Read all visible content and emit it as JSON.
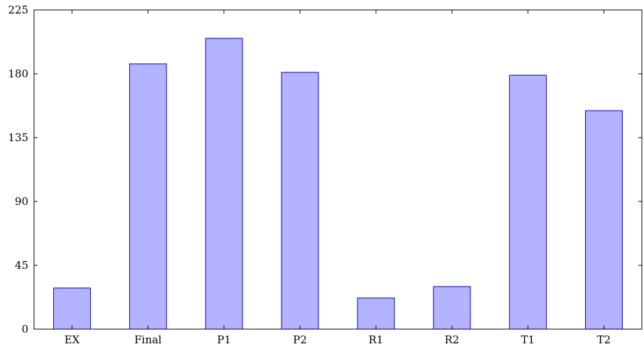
{
  "chart_data": {
    "type": "bar",
    "title": "",
    "xlabel": "",
    "ylabel": "",
    "categories": [
      "EX",
      "Final",
      "P1",
      "P2",
      "R1",
      "R2",
      "T1",
      "T2"
    ],
    "values": [
      29,
      187,
      205,
      181,
      22,
      30,
      179,
      154
    ],
    "ylim": [
      0,
      225
    ],
    "yticks": [
      0,
      45,
      90,
      135,
      180,
      225
    ],
    "ytick_labels": [
      "0",
      "45",
      "90",
      "135",
      "180",
      "225"
    ],
    "grid": false,
    "legend": "none",
    "colors": {
      "bar_fill": "#b3b3ff",
      "bar_stroke": "#0000cc",
      "axis": "#000000"
    }
  }
}
